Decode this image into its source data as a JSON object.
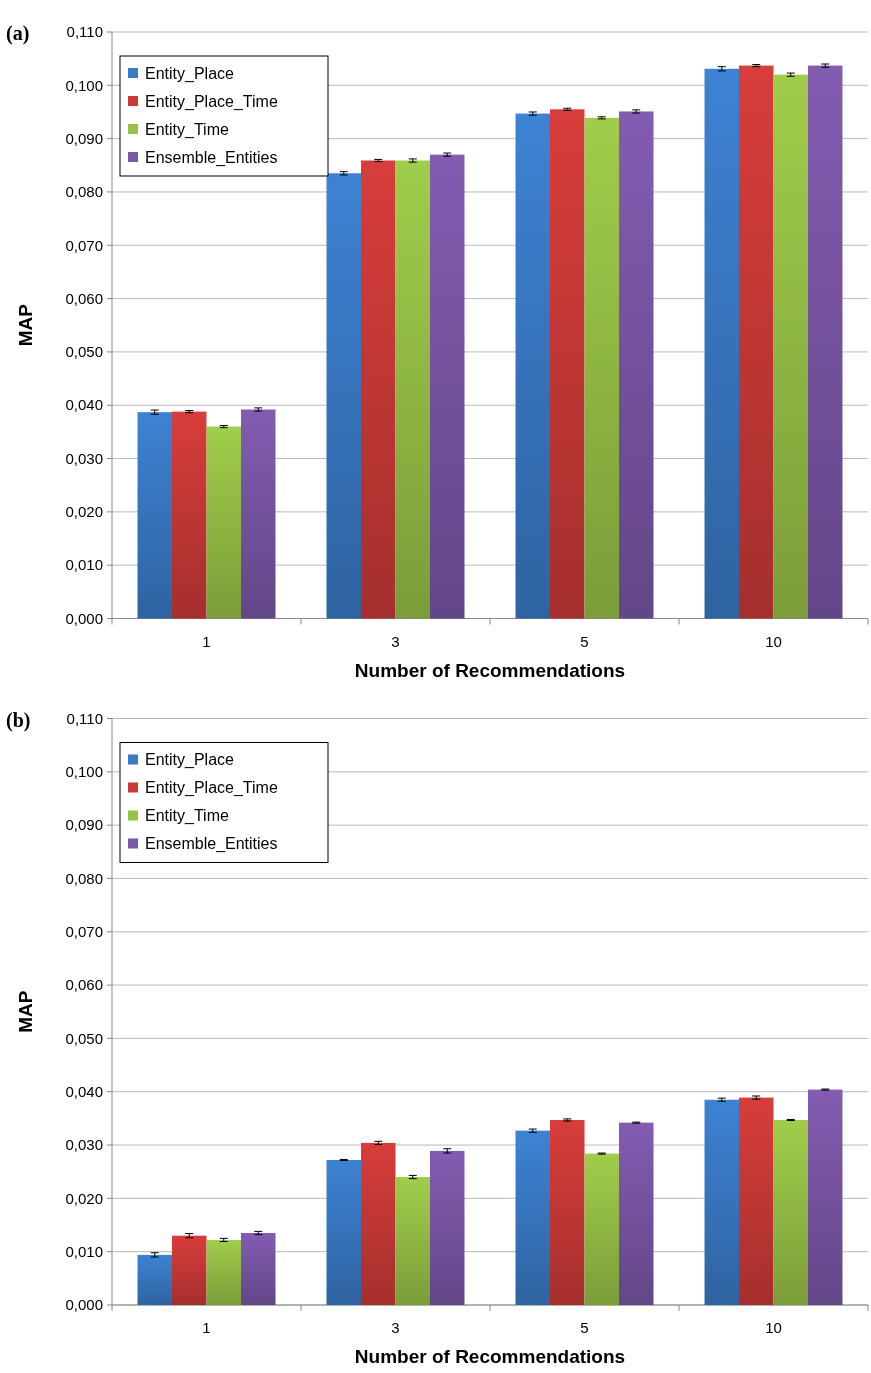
{
  "chart_data": [
    {
      "type": "bar",
      "title": "(a)",
      "xlabel": "Number of Recommendations",
      "ylabel": "MAP",
      "categories": [
        "1",
        "3",
        "5",
        "10"
      ],
      "ylim": [
        0,
        0.11
      ],
      "yticks": [
        {
          "value": 0,
          "label": "0,000"
        },
        {
          "value": 0.01,
          "label": "0,010"
        },
        {
          "value": 0.02,
          "label": "0,020"
        },
        {
          "value": 0.03,
          "label": "0,030"
        },
        {
          "value": 0.04,
          "label": "0,040"
        },
        {
          "value": 0.05,
          "label": "0,050"
        },
        {
          "value": 0.06,
          "label": "0,060"
        },
        {
          "value": 0.07,
          "label": "0,070"
        },
        {
          "value": 0.08,
          "label": "0,080"
        },
        {
          "value": 0.09,
          "label": "0,090"
        },
        {
          "value": 0.1,
          "label": "0,100"
        },
        {
          "value": 0.11,
          "label": "0,110"
        }
      ],
      "grid": "y",
      "legend": "top left",
      "series": [
        {
          "name": "Entity_Place",
          "color": "#3a7bc8",
          "values": [
            0.0387,
            0.0835,
            0.0947,
            0.1031
          ],
          "errors": [
            0.0004,
            0.0003,
            0.0003,
            0.0004
          ]
        },
        {
          "name": "Entity_Place_Time",
          "color": "#cc3a38",
          "values": [
            0.0388,
            0.0859,
            0.0955,
            0.1037
          ],
          "errors": [
            0.0002,
            0.0002,
            0.0002,
            0.0002
          ]
        },
        {
          "name": "Entity_Time",
          "color": "#98c247",
          "values": [
            0.036,
            0.0859,
            0.0939,
            0.102
          ],
          "errors": [
            0.0002,
            0.0003,
            0.0002,
            0.0003
          ]
        },
        {
          "name": "Ensemble_Entities",
          "color": "#7b57a8",
          "values": [
            0.0392,
            0.087,
            0.0951,
            0.1037
          ],
          "errors": [
            0.0003,
            0.0003,
            0.0003,
            0.0003
          ]
        }
      ]
    },
    {
      "type": "bar",
      "title": "(b)",
      "xlabel": "Number of Recommendations",
      "ylabel": "MAP",
      "categories": [
        "1",
        "3",
        "5",
        "10"
      ],
      "ylim": [
        0,
        0.11
      ],
      "yticks": [
        {
          "value": 0,
          "label": "0,000"
        },
        {
          "value": 0.01,
          "label": "0,010"
        },
        {
          "value": 0.02,
          "label": "0,020"
        },
        {
          "value": 0.03,
          "label": "0,030"
        },
        {
          "value": 0.04,
          "label": "0,040"
        },
        {
          "value": 0.05,
          "label": "0,050"
        },
        {
          "value": 0.06,
          "label": "0,060"
        },
        {
          "value": 0.07,
          "label": "0,070"
        },
        {
          "value": 0.08,
          "label": "0,080"
        },
        {
          "value": 0.09,
          "label": "0,090"
        },
        {
          "value": 0.1,
          "label": "0,100"
        },
        {
          "value": 0.11,
          "label": "0,110"
        }
      ],
      "grid": "y",
      "legend": "top left",
      "series": [
        {
          "name": "Entity_Place",
          "color": "#3a7bc8",
          "values": [
            0.0094,
            0.0272,
            0.0327,
            0.0385
          ],
          "errors": [
            0.0004,
            0.0001,
            0.0003,
            0.0003
          ]
        },
        {
          "name": "Entity_Place_Time",
          "color": "#cc3a38",
          "values": [
            0.013,
            0.0304,
            0.0347,
            0.0389
          ],
          "errors": [
            0.0004,
            0.0003,
            0.0002,
            0.0003
          ]
        },
        {
          "name": "Entity_Time",
          "color": "#98c247",
          "values": [
            0.0122,
            0.024,
            0.0284,
            0.0347
          ],
          "errors": [
            0.0003,
            0.0003,
            0.0001,
            0.0001
          ]
        },
        {
          "name": "Ensemble_Entities",
          "color": "#7b57a8",
          "values": [
            0.0135,
            0.0289,
            0.0342,
            0.0404
          ],
          "errors": [
            0.0003,
            0.0004,
            0.0001,
            0.0001
          ]
        }
      ]
    }
  ]
}
